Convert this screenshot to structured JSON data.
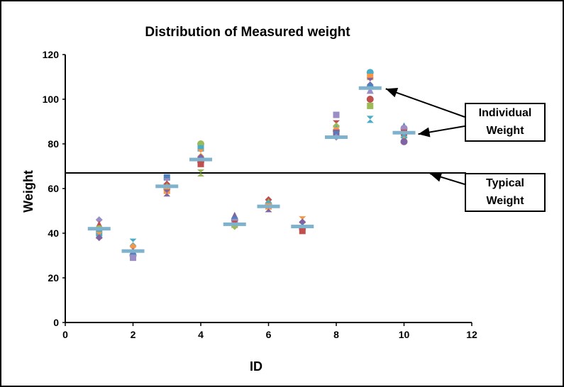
{
  "chart_data": {
    "type": "scatter",
    "title": "Distribution of Measured weight",
    "xlabel": "ID",
    "ylabel": "Weight",
    "xlim": [
      0,
      12
    ],
    "ylim": [
      0,
      120
    ],
    "xticks": [
      0,
      2,
      4,
      6,
      8,
      10,
      12
    ],
    "yticks": [
      0,
      20,
      40,
      60,
      80,
      100,
      120
    ],
    "grid": false,
    "individual_points": [
      {
        "id": 1,
        "values": [
          46,
          44,
          42,
          40,
          39,
          38
        ]
      },
      {
        "id": 2,
        "values": [
          36,
          34,
          32,
          30,
          29
        ]
      },
      {
        "id": 3,
        "values": [
          65,
          63,
          62,
          61,
          60,
          59,
          58
        ]
      },
      {
        "id": 4,
        "values": [
          80,
          78,
          76,
          74,
          73,
          72,
          71,
          67
        ]
      },
      {
        "id": 5,
        "values": [
          48,
          46,
          45,
          44,
          43
        ]
      },
      {
        "id": 6,
        "values": [
          55,
          54,
          53,
          52,
          51
        ]
      },
      {
        "id": 7,
        "values": [
          46,
          45,
          43,
          42,
          41
        ]
      },
      {
        "id": 8,
        "values": [
          93,
          89,
          88,
          87,
          86,
          85,
          84,
          83
        ]
      },
      {
        "id": 9,
        "values": [
          112,
          110,
          108,
          106,
          104,
          100,
          97,
          91
        ]
      },
      {
        "id": 10,
        "values": [
          88,
          87,
          85,
          84,
          83,
          82,
          81
        ]
      }
    ],
    "typical_per_id": [
      {
        "id": 1,
        "value": 42
      },
      {
        "id": 2,
        "value": 32
      },
      {
        "id": 3,
        "value": 61
      },
      {
        "id": 4,
        "value": 73
      },
      {
        "id": 5,
        "value": 44
      },
      {
        "id": 6,
        "value": 52
      },
      {
        "id": 7,
        "value": 43
      },
      {
        "id": 8,
        "value": 83
      },
      {
        "id": 9,
        "value": 105
      },
      {
        "id": 10,
        "value": 85
      }
    ],
    "typical_weight": 67,
    "marker_colors": [
      "#9b8ec4",
      "#c0504d",
      "#9bbb59",
      "#4bacc6",
      "#f79646",
      "#8064a2",
      "#4f81bd"
    ],
    "mean_color": "#7fb2cc",
    "annotations": {
      "individual_label": [
        "Individual",
        "Weight"
      ],
      "typical_label": [
        "Typical",
        "Weight"
      ]
    }
  }
}
